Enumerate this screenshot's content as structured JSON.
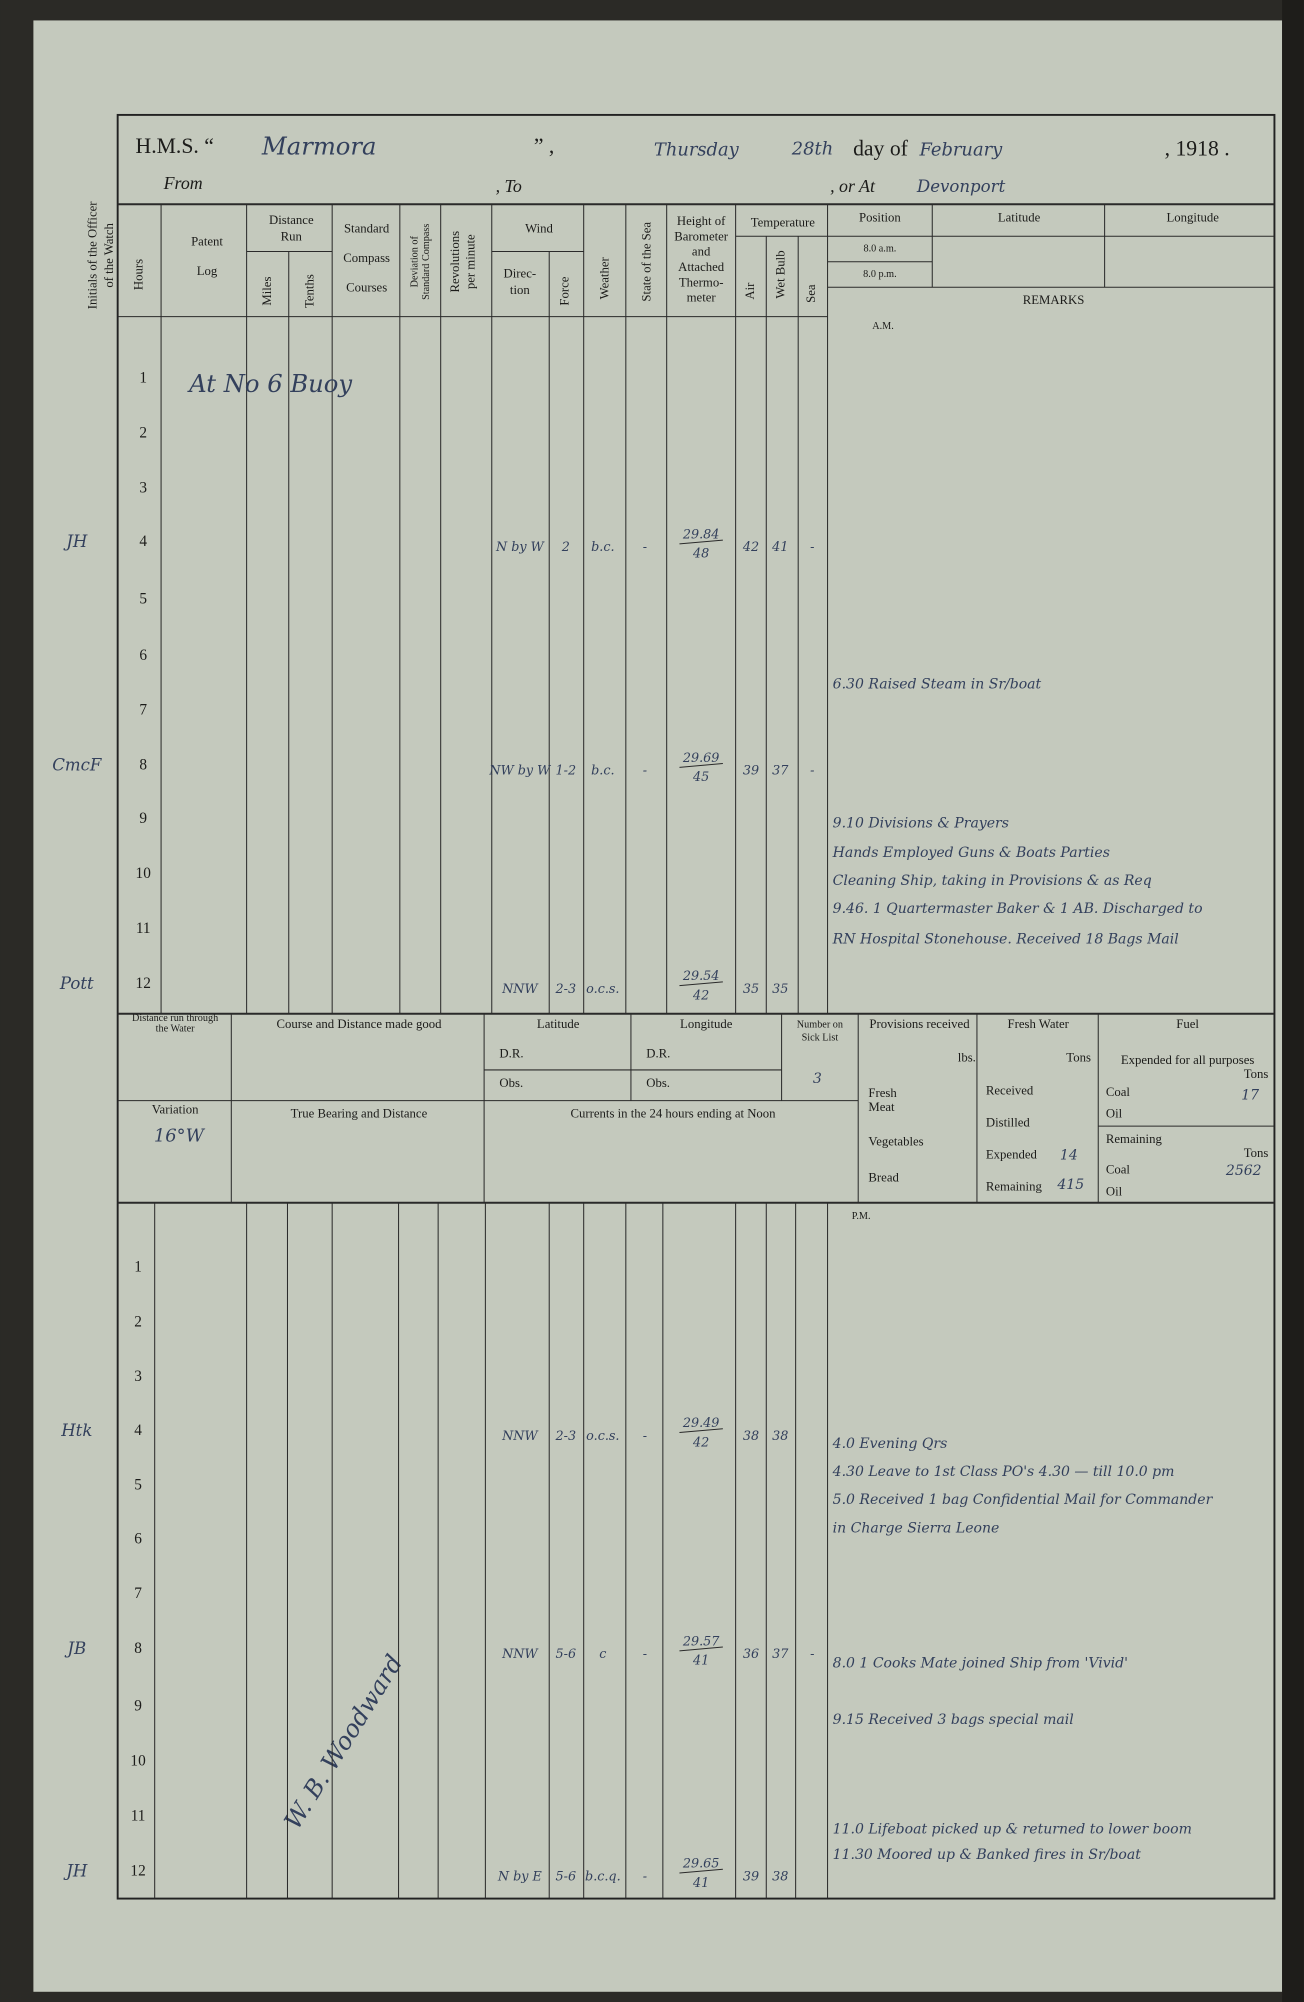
{
  "header": {
    "ship_label": "H.M.S. “",
    "ship": "Marmora",
    "ship_close": "”  ,",
    "day": "Thursday",
    "date": "28th",
    "day_of": "day of",
    "month": "February",
    "year_text": ", 1918 .",
    "from": "From",
    "to": ", To",
    "or_at": ", or At",
    "place": "Devonport"
  },
  "margin_label": [
    "Initials of the Officer",
    "of the Watch"
  ],
  "columns": [
    [
      "Hours"
    ],
    [
      "Patent",
      "Log"
    ],
    [
      "Distance",
      "Run"
    ],
    [
      "Miles"
    ],
    [
      "Tenths"
    ],
    [
      "Standard",
      "Compass",
      "Courses"
    ],
    [
      "Deviation of",
      "Standard Compass"
    ],
    [
      "Revolutions",
      "per minute"
    ],
    [
      "Wind"
    ],
    [
      "Direc-",
      "tion"
    ],
    [
      "Force"
    ],
    [
      "Weather"
    ],
    [
      "State of the Sea"
    ],
    [
      "Height of",
      "Barometer",
      "and",
      "Attached",
      "Thermo-",
      "meter"
    ],
    [
      "Temperature"
    ],
    [
      "Air"
    ],
    [
      "Wet Bulb"
    ],
    [
      "Sea"
    ],
    [
      "Position"
    ],
    [
      "8.0 a.m."
    ],
    [
      "8.0 p.m."
    ],
    [
      "Latitude"
    ],
    [
      "Longitude"
    ],
    [
      "REMARKS"
    ]
  ],
  "am": {
    "label": "A.M.",
    "rows": [
      {
        "hour": 1,
        "log": "At No 6 Buoy"
      },
      {
        "hour": 2
      },
      {
        "hour": 3
      },
      {
        "hour": 4,
        "initials": "JH",
        "direction": "N by W",
        "force": "2",
        "weather": "b.c.",
        "sea": "-",
        "barometer": 29.84,
        "thermometer": 48,
        "air": 42,
        "wet_bulb": 41,
        "sea_temp": "-"
      },
      {
        "hour": 5
      },
      {
        "hour": 6
      },
      {
        "hour": 7
      },
      {
        "hour": 8,
        "initials": "CmcF",
        "direction": "NW by W",
        "force": "1-2",
        "weather": "b.c.",
        "sea": "-",
        "barometer": 29.69,
        "thermometer": 45,
        "air": 39,
        "wet_bulb": 37,
        "sea_temp": "-"
      },
      {
        "hour": 9
      },
      {
        "hour": 10
      },
      {
        "hour": 11
      },
      {
        "hour": 12,
        "initials": "Pott",
        "direction": "NNW",
        "force": "2-3",
        "weather": "o.c.s.",
        "barometer": 29.54,
        "thermometer": 42,
        "air": 35,
        "wet_bulb": 35
      }
    ],
    "remarks": [
      "6.30 Raised Steam in Sr/boat",
      "9.10 Divisions & Prayers",
      "Hands Employed Guns & Boats Parties",
      "Cleaning Ship, taking in Provisions & as Req",
      "9.46. 1 Quartermaster Baker & 1 AB. Discharged to",
      "RN Hospital Stonehouse. Received 18 Bags Mail"
    ]
  },
  "noon": {
    "distance_water": [
      "Distance run through",
      "the Water"
    ],
    "course_distance": "Course and Distance made good",
    "latitude": "Latitude",
    "lat_dr": "D.R.",
    "lat_obs": "Obs.",
    "longitude": "Longitude",
    "lon_dr": "D.R.",
    "lon_obs": "Obs.",
    "sick_list": [
      "Number on",
      "Sick List"
    ],
    "sick_count": 3,
    "variation": "Variation",
    "variation_value": "16°W",
    "true_bearing": "True Bearing and Distance",
    "currents": "Currents in the 24 hours ending at Noon",
    "provisions": {
      "title": "Provisions received",
      "unit": "lbs.",
      "fresh": [
        "Fresh",
        "Meat"
      ],
      "vegetables": "Vegetables",
      "bread": "Bread"
    },
    "fresh_water": {
      "title": "Fresh Water",
      "unit": "Tons",
      "received": "Received",
      "distilled": "Distilled",
      "expended": "Expended",
      "expended_value": 14,
      "remaining": "Remaining",
      "remaining_value": 415
    },
    "fuel": {
      "title": "Fuel",
      "expended_label": "Expended for all purposes",
      "unit": "Tons",
      "coal": "Coal",
      "coal_expended": 17,
      "oil": "Oil",
      "remaining": "Remaining",
      "unit2": "Tons",
      "coal2": "Coal",
      "coal_remaining": 2562,
      "oil2": "Oil"
    }
  },
  "pm": {
    "label": "P.M.",
    "rows": [
      {
        "hour": 1
      },
      {
        "hour": 2
      },
      {
        "hour": 3
      },
      {
        "hour": 4,
        "initials": "Htk",
        "direction": "NNW",
        "force": "2-3",
        "weather": "o.c.s.",
        "sea": "-",
        "barometer": 29.49,
        "thermometer": 42,
        "air": 38,
        "wet_bulb": 38
      },
      {
        "hour": 5
      },
      {
        "hour": 6
      },
      {
        "hour": 7
      },
      {
        "hour": 8,
        "initials": "JB",
        "direction": "NNW",
        "force": "5-6",
        "weather": "c",
        "sea": "-",
        "barometer": 29.57,
        "thermometer": 41,
        "air": 36,
        "wet_bulb": 37,
        "sea_temp": "-"
      },
      {
        "hour": 9
      },
      {
        "hour": 10
      },
      {
        "hour": 11
      },
      {
        "hour": 12,
        "initials": "JH",
        "direction": "N by E",
        "force": "5-6",
        "weather": "b.c.q.",
        "sea": "-",
        "barometer": 29.65,
        "thermometer": 41,
        "air": 39,
        "wet_bulb": 38
      }
    ],
    "remarks": [
      "4.0 Evening Qrs",
      "4.30 Leave to 1st Class PO's 4.30 — till 10.0 pm",
      "5.0 Received 1 bag Confidential Mail for Commander",
      "in Charge Sierra Leone",
      "8.0 1 Cooks Mate joined Ship from 'Vivid'",
      "9.15 Received 3 bags special mail",
      "11.0 Lifeboat picked up & returned to lower boom",
      "11.30 Moored up & Banked fires in Sr/boat"
    ],
    "signature": "W. B. Woodward"
  }
}
